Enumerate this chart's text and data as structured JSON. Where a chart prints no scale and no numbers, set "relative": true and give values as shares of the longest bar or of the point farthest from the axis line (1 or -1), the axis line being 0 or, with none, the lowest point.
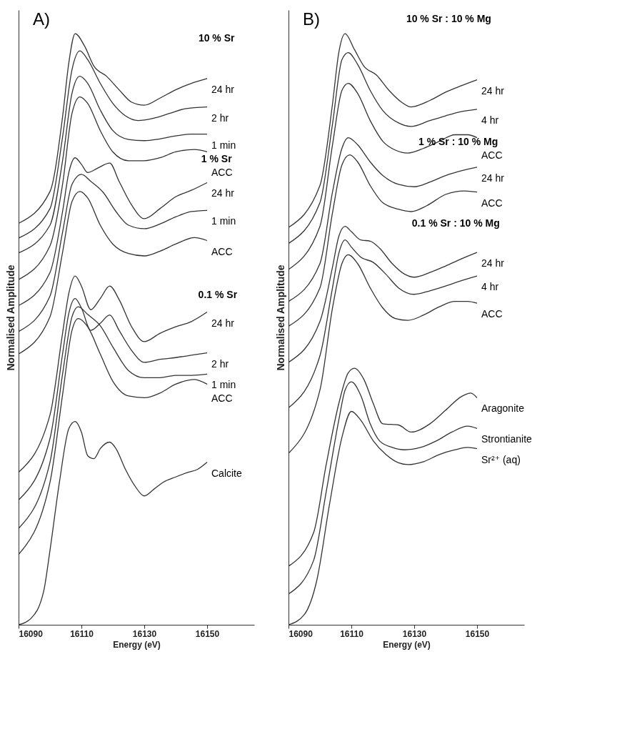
{
  "chart_data": [
    {
      "type": "line",
      "title": "A)",
      "xlabel": "Energy (eV)",
      "ylabel": "Normalised Amplitude",
      "relative": true,
      "xlim": [
        16090,
        16165
      ],
      "xticks": [
        16090,
        16110,
        16130,
        16150
      ],
      "annotations": [
        "10 % Sr",
        "1 % Sr",
        "0.1 % Sr"
      ],
      "series": [
        {
          "name": "24 hr",
          "color": "#333333",
          "x": [
            16090,
            16100,
            16104,
            16106,
            16108,
            16111,
            16114,
            16118,
            16122,
            16126,
            16130,
            16135,
            16140,
            16145,
            16150
          ],
          "values": [
            0.679,
            0.733,
            0.859,
            0.951,
            1.0,
            0.979,
            0.945,
            0.928,
            0.905,
            0.884,
            0.879,
            0.891,
            0.905,
            0.916,
            0.924
          ]
        },
        {
          "name": "2 hr",
          "color": "#333333",
          "x": [
            16090,
            16100,
            16104,
            16107,
            16109.5,
            16112,
            16116,
            16120,
            16124,
            16128,
            16133,
            16138,
            16143,
            16150
          ],
          "values": [
            0.654,
            0.704,
            0.825,
            0.939,
            0.971,
            0.956,
            0.916,
            0.882,
            0.861,
            0.853,
            0.857,
            0.865,
            0.873,
            0.876
          ]
        },
        {
          "name": "1 min",
          "color": "#333333",
          "x": [
            16090,
            16100,
            16104,
            16107,
            16109.5,
            16112,
            16116,
            16120,
            16125,
            16130,
            16135,
            16140,
            16145,
            16150
          ],
          "values": [
            0.629,
            0.676,
            0.785,
            0.899,
            0.928,
            0.916,
            0.871,
            0.836,
            0.821,
            0.819,
            0.822,
            0.827,
            0.83,
            0.83
          ]
        },
        {
          "name": "ACC",
          "color": "#333333",
          "x": [
            16090,
            16100,
            16104,
            16107,
            16109.5,
            16112,
            16116,
            16120,
            16125,
            16130,
            16135,
            16140,
            16146,
            16150
          ],
          "values": [
            0.584,
            0.641,
            0.745,
            0.865,
            0.893,
            0.882,
            0.836,
            0.8,
            0.785,
            0.785,
            0.79,
            0.8,
            0.804,
            0.8
          ]
        },
        {
          "name": "24 hr",
          "color": "#333333",
          "x": [
            16090,
            16100,
            16104,
            16106,
            16108,
            16110,
            16112,
            16115,
            16119,
            16122,
            16126,
            16130,
            16135,
            16140,
            16145,
            16150
          ],
          "values": [
            0.54,
            0.596,
            0.699,
            0.765,
            0.79,
            0.779,
            0.765,
            0.772,
            0.781,
            0.75,
            0.71,
            0.687,
            0.704,
            0.724,
            0.735,
            0.748
          ]
        },
        {
          "name": "1 min",
          "color": "#333333",
          "x": [
            16090,
            16100,
            16104,
            16107,
            16110,
            16113,
            16117,
            16121,
            16125,
            16130,
            16135,
            16140,
            16145,
            16150
          ],
          "values": [
            0.496,
            0.556,
            0.664,
            0.745,
            0.762,
            0.75,
            0.731,
            0.699,
            0.676,
            0.67,
            0.678,
            0.69,
            0.699,
            0.701
          ]
        },
        {
          "name": "ACC",
          "color": "#333333",
          "x": [
            16090,
            16100,
            16104,
            16107,
            16109.5,
            16112,
            16116,
            16120,
            16125,
            16130,
            16135,
            16140,
            16146,
            16150
          ],
          "values": [
            0.458,
            0.521,
            0.63,
            0.716,
            0.733,
            0.722,
            0.676,
            0.644,
            0.628,
            0.624,
            0.632,
            0.644,
            0.655,
            0.65
          ]
        },
        {
          "name": "24 hr",
          "color": "#333333",
          "x": [
            16090,
            16100,
            16104,
            16106,
            16108,
            16110,
            16113,
            16116,
            16119,
            16122,
            16126,
            16130,
            16135,
            16140,
            16145,
            16150
          ],
          "values": [
            0.258,
            0.355,
            0.493,
            0.561,
            0.59,
            0.573,
            0.533,
            0.552,
            0.573,
            0.55,
            0.504,
            0.479,
            0.493,
            0.504,
            0.513,
            0.529
          ]
        },
        {
          "name": "2 hr",
          "color": "#333333",
          "x": [
            16090,
            16100,
            16104,
            16106,
            16108,
            16110,
            16113,
            16116,
            16119,
            16122,
            16126,
            16130,
            16135,
            16140,
            16145,
            16150
          ],
          "values": [
            0.211,
            0.315,
            0.458,
            0.527,
            0.552,
            0.536,
            0.498,
            0.51,
            0.524,
            0.498,
            0.464,
            0.444,
            0.449,
            0.452,
            0.456,
            0.46
          ]
        },
        {
          "name": "1 min",
          "color": "#333333",
          "x": [
            16090,
            16100,
            16104,
            16107,
            16109,
            16112,
            16116,
            16120,
            16125,
            16130,
            16135,
            16140,
            16145,
            16150
          ],
          "values": [
            0.163,
            0.275,
            0.424,
            0.521,
            0.538,
            0.525,
            0.506,
            0.47,
            0.43,
            0.418,
            0.418,
            0.422,
            0.422,
            0.424
          ]
        },
        {
          "name": "ACC",
          "color": "#333333",
          "x": [
            16090,
            16100,
            16104,
            16107,
            16109,
            16112,
            16116,
            16120,
            16125,
            16130,
            16135,
            16140,
            16146,
            16150
          ],
          "values": [
            0.119,
            0.241,
            0.389,
            0.498,
            0.518,
            0.504,
            0.458,
            0.412,
            0.387,
            0.384,
            0.392,
            0.407,
            0.415,
            0.407
          ]
        },
        {
          "name": "Calcite",
          "color": "#333333",
          "x": [
            16090,
            16094,
            16098,
            16100,
            16103,
            16106,
            16108,
            16110,
            16112,
            16114,
            16116,
            16119,
            16121,
            16124,
            16127,
            16130,
            16133,
            16136,
            16140,
            16144,
            16147,
            16150
          ],
          "values": [
            0,
            0.011,
            0.057,
            0.126,
            0.241,
            0.332,
            0.344,
            0.326,
            0.286,
            0.281,
            0.298,
            0.309,
            0.298,
            0.263,
            0.235,
            0.218,
            0.229,
            0.241,
            0.25,
            0.258,
            0.263,
            0.275
          ]
        }
      ]
    },
    {
      "type": "line",
      "title": "B)",
      "xlabel": "Energy (eV)",
      "ylabel": "Normalised Amplitude",
      "relative": true,
      "xlim": [
        16090,
        16165
      ],
      "xticks": [
        16090,
        16110,
        16130,
        16150
      ],
      "annotations": [
        "10 % Sr : 10 % Mg",
        "1 % Sr : 10 % Mg",
        "0.1 % Sr : 10 % Mg"
      ],
      "series": [
        {
          "name": "24 hr",
          "color": "#333333",
          "x": [
            16090,
            16100,
            16104,
            16106,
            16108,
            16111,
            16114,
            16118,
            16122,
            16126,
            16129,
            16135,
            16140,
            16145,
            16150
          ],
          "values": [
            0.672,
            0.743,
            0.881,
            0.968,
            1.0,
            0.973,
            0.945,
            0.93,
            0.904,
            0.884,
            0.876,
            0.887,
            0.901,
            0.912,
            0.922
          ]
        },
        {
          "name": "4 hr",
          "color": "#333333",
          "x": [
            16090,
            16100,
            16104,
            16107,
            16109,
            16112,
            16116,
            16120,
            16125,
            16129,
            16135,
            16140,
            16145,
            16150
          ],
          "values": [
            0.645,
            0.714,
            0.847,
            0.956,
            0.968,
            0.948,
            0.904,
            0.87,
            0.849,
            0.843,
            0.853,
            0.861,
            0.868,
            0.872
          ]
        },
        {
          "name": "ACC",
          "color": "#333333",
          "x": [
            16090,
            16100,
            16104,
            16107,
            16109,
            16112,
            16116,
            16120,
            16124,
            16128,
            16133,
            16138,
            16143,
            16147,
            16150
          ],
          "values": [
            0.601,
            0.674,
            0.812,
            0.904,
            0.916,
            0.899,
            0.853,
            0.818,
            0.803,
            0.798,
            0.806,
            0.818,
            0.829,
            0.829,
            0.824
          ]
        },
        {
          "name": "24 hr",
          "color": "#333333",
          "x": [
            16090,
            16100,
            16104,
            16107,
            16109,
            16112,
            16116,
            16120,
            16125,
            16130,
            16135,
            16140,
            16145,
            16150
          ],
          "values": [
            0.547,
            0.611,
            0.732,
            0.806,
            0.824,
            0.812,
            0.783,
            0.76,
            0.745,
            0.741,
            0.749,
            0.76,
            0.768,
            0.774
          ]
        },
        {
          "name": "ACC",
          "color": "#333333",
          "x": [
            16090,
            16100,
            16104,
            16107,
            16109.5,
            16112,
            16116,
            16120,
            16125,
            16129,
            16134,
            16140,
            16146,
            16150
          ],
          "values": [
            0.505,
            0.57,
            0.697,
            0.778,
            0.795,
            0.783,
            0.743,
            0.714,
            0.703,
            0.699,
            0.709,
            0.728,
            0.734,
            0.732
          ]
        },
        {
          "name": "24 hr",
          "color": "#333333",
          "x": [
            16090,
            16100,
            16104,
            16106,
            16108,
            16110,
            16113,
            16116,
            16119,
            16123,
            16127,
            16130,
            16135,
            16140,
            16145,
            16150
          ],
          "values": [
            0.444,
            0.513,
            0.605,
            0.657,
            0.674,
            0.665,
            0.651,
            0.649,
            0.637,
            0.611,
            0.593,
            0.588,
            0.596,
            0.607,
            0.619,
            0.63
          ]
        },
        {
          "name": "4 hr",
          "color": "#333333",
          "x": [
            16090,
            16100,
            16104,
            16106,
            16108,
            16110,
            16113,
            16117,
            16121,
            16125,
            16130,
            16135,
            16140,
            16145,
            16150
          ],
          "values": [
            0.367,
            0.455,
            0.57,
            0.628,
            0.651,
            0.639,
            0.622,
            0.613,
            0.593,
            0.57,
            0.559,
            0.565,
            0.573,
            0.582,
            0.59
          ]
        },
        {
          "name": "ACC",
          "color": "#333333",
          "x": [
            16090,
            16100,
            16104,
            16107,
            16109,
            16112,
            16116,
            16120,
            16124,
            16128,
            16133,
            16138,
            16143,
            16147,
            16150
          ],
          "values": [
            0.29,
            0.397,
            0.536,
            0.611,
            0.626,
            0.611,
            0.57,
            0.536,
            0.518,
            0.515,
            0.524,
            0.538,
            0.547,
            0.547,
            0.544
          ]
        },
        {
          "name": "Aragonite",
          "color": "#333333",
          "x": [
            16090,
            16098,
            16102,
            16106,
            16109,
            16111,
            16114,
            16117,
            16120,
            16125,
            16129,
            16135,
            16140,
            16145,
            16148,
            16150
          ],
          "values": [
            0.099,
            0.156,
            0.271,
            0.374,
            0.426,
            0.434,
            0.415,
            0.374,
            0.34,
            0.338,
            0.326,
            0.34,
            0.363,
            0.386,
            0.392,
            0.384
          ]
        },
        {
          "name": "Strontianite",
          "color": "#333333",
          "x": [
            16090,
            16098,
            16102,
            16106,
            16108,
            16110,
            16113,
            16116,
            16119,
            16123,
            16127,
            16132,
            16137,
            16142,
            16147,
            16150
          ],
          "values": [
            0.052,
            0.109,
            0.225,
            0.346,
            0.397,
            0.411,
            0.388,
            0.34,
            0.311,
            0.3,
            0.296,
            0.3,
            0.311,
            0.326,
            0.336,
            0.332
          ]
        },
        {
          "name": "Sr²⁺ (aq)",
          "color": "#333333",
          "x": [
            16090,
            16095,
            16099,
            16103,
            16107,
            16110,
            16113,
            16117,
            16121,
            16125,
            16128,
            16133,
            16138,
            16143,
            16147,
            16150
          ],
          "values": [
            0,
            0.017,
            0.075,
            0.202,
            0.317,
            0.361,
            0.346,
            0.311,
            0.288,
            0.274,
            0.271,
            0.276,
            0.288,
            0.296,
            0.3,
            0.298
          ]
        }
      ]
    }
  ]
}
